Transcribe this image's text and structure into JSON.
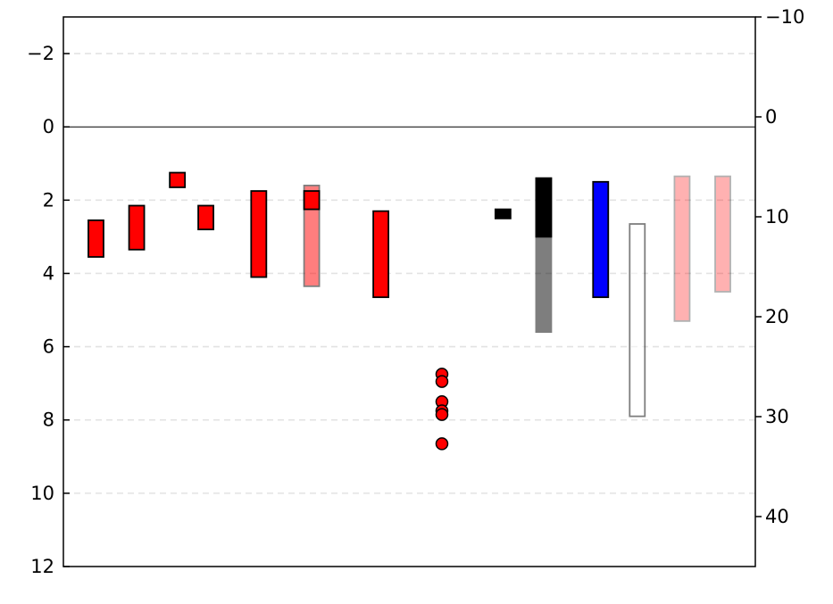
{
  "chart_data": {
    "type": "bar",
    "title": "",
    "xlabel": "",
    "ylabel": "",
    "ylabel_right": "",
    "y_inverted": true,
    "ylim": [
      -3,
      12
    ],
    "ylim_right": [
      -10.0,
      45.0
    ],
    "y_ticks": [
      -2,
      0,
      2,
      4,
      6,
      8,
      10,
      12
    ],
    "y_tick_labels": [
      "−2",
      "0",
      "2",
      "4",
      "6",
      "8",
      "10",
      "12"
    ],
    "y_right_ticks": [
      -10,
      0,
      10,
      20,
      30,
      40
    ],
    "y_right_tick_labels": [
      "−10",
      "0",
      "10",
      "20",
      "30",
      "40"
    ],
    "grid": "horizontal dashed",
    "zero_line": true,
    "ranges": [
      {
        "x": 1.0,
        "bottom": 2.55,
        "top": 3.55,
        "fill": "#ff0000",
        "edge": "#000000",
        "opacity": 1
      },
      {
        "x": 2.0,
        "bottom": 2.15,
        "top": 3.35,
        "fill": "#ff0000",
        "edge": "#000000",
        "opacity": 1
      },
      {
        "x": 3.0,
        "bottom": 1.25,
        "top": 1.65,
        "fill": "#ff0000",
        "edge": "#000000",
        "opacity": 1
      },
      {
        "x": 3.7,
        "bottom": 2.15,
        "top": 2.8,
        "fill": "#ff0000",
        "edge": "#000000",
        "opacity": 1
      },
      {
        "x": 5.0,
        "bottom": 1.75,
        "top": 4.1,
        "fill": "#ff0000",
        "edge": "#000000",
        "opacity": 1
      },
      {
        "x": 6.3,
        "bottom": 1.6,
        "top": 4.35,
        "fill": "#ff0000",
        "edge": "#000000",
        "opacity": 0.5
      },
      {
        "x": 6.3,
        "bottom": 1.75,
        "top": 2.25,
        "fill": "#ff0000",
        "edge": "#000000",
        "opacity": 1
      },
      {
        "x": 8.0,
        "bottom": 2.3,
        "top": 4.65,
        "fill": "#ff0000",
        "edge": "#000000",
        "opacity": 1
      },
      {
        "x": 11.0,
        "bottom": 2.25,
        "top": 2.5,
        "fill": "#000000",
        "edge": "#000000",
        "opacity": 1
      },
      {
        "x": 12.0,
        "bottom": 1.4,
        "top": 5.6,
        "fill": "#000000",
        "edge": "#000000",
        "opacity": 0.5
      },
      {
        "x": 12.0,
        "bottom": 1.4,
        "top": 3.0,
        "fill": "#000000",
        "edge": "#000000",
        "opacity": 1
      },
      {
        "x": 13.4,
        "bottom": 1.5,
        "top": 4.65,
        "fill": "#0000ff",
        "edge": "#000000",
        "opacity": 1
      },
      {
        "x": 14.3,
        "bottom": 2.65,
        "top": 7.9,
        "fill": "#ffffff",
        "edge": "#000000",
        "opacity": 0.5
      },
      {
        "x": 15.4,
        "bottom": 1.35,
        "top": 5.3,
        "fill": "#ff0000",
        "edge": "#000000",
        "opacity": 0.3
      },
      {
        "x": 16.4,
        "bottom": 1.35,
        "top": 4.5,
        "fill": "#ff0000",
        "edge": "#000000",
        "opacity": 0.3
      }
    ],
    "points": [
      {
        "x": 9.5,
        "y": 6.75,
        "color": "#ff0000"
      },
      {
        "x": 9.5,
        "y": 6.95,
        "color": "#ff0000"
      },
      {
        "x": 9.5,
        "y": 7.5,
        "color": "#ff0000"
      },
      {
        "x": 9.5,
        "y": 7.75,
        "color": "#ff0000"
      },
      {
        "x": 9.5,
        "y": 7.85,
        "color": "#ff0000"
      },
      {
        "x": 9.5,
        "y": 8.65,
        "color": "#ff0000"
      }
    ]
  }
}
